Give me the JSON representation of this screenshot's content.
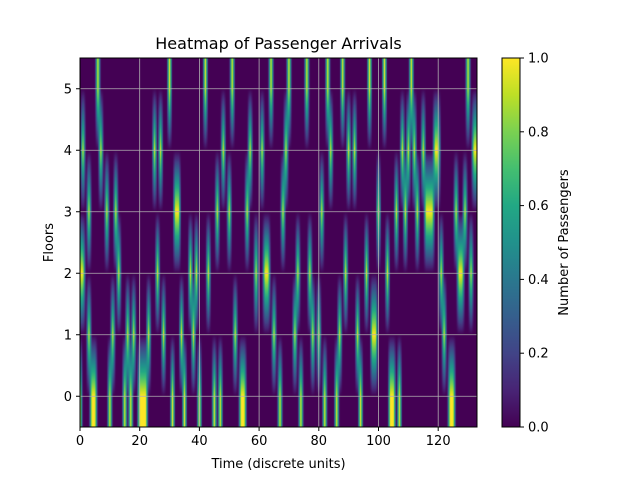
{
  "chart_data": {
    "type": "heatmap",
    "title": "Heatmap of Passenger Arrivals",
    "xlabel": "Time (discrete units)",
    "ylabel": "Floors",
    "colorbar_label": "Number of Passengers",
    "colormap": "viridis",
    "grid": true,
    "xlim": [
      0,
      133
    ],
    "ylim": [
      -0.5,
      5.5
    ],
    "value_range": [
      0,
      1
    ],
    "x_ticks": [
      0,
      20,
      40,
      60,
      80,
      100,
      120
    ],
    "y_ticks": [
      0,
      1,
      2,
      3,
      4,
      5
    ],
    "colorbar_ticks": [
      "0.0",
      "0.2",
      "0.4",
      "0.6",
      "0.8",
      "1.0"
    ],
    "time_steps": 133,
    "floors": [
      0,
      1,
      2,
      3,
      4,
      5
    ],
    "arrivals": [
      {
        "t": 0,
        "floor": 0
      },
      {
        "t": 0,
        "floor": 2
      },
      {
        "t": 1,
        "floor": 2
      },
      {
        "t": 1,
        "floor": 4
      },
      {
        "t": 3,
        "floor": 1
      },
      {
        "t": 3,
        "floor": 3
      },
      {
        "t": 4,
        "floor": 0
      },
      {
        "t": 5,
        "floor": 0
      },
      {
        "t": 6,
        "floor": 5
      },
      {
        "t": 7,
        "floor": 4
      },
      {
        "t": 9,
        "floor": 3
      },
      {
        "t": 10,
        "floor": 0
      },
      {
        "t": 11,
        "floor": 1
      },
      {
        "t": 12,
        "floor": 3
      },
      {
        "t": 13,
        "floor": 2
      },
      {
        "t": 15,
        "floor": 0
      },
      {
        "t": 16,
        "floor": 1
      },
      {
        "t": 17,
        "floor": 0
      },
      {
        "t": 18,
        "floor": 1
      },
      {
        "t": 20,
        "floor": 0
      },
      {
        "t": 21,
        "floor": 0
      },
      {
        "t": 22,
        "floor": 0
      },
      {
        "t": 23,
        "floor": 1
      },
      {
        "t": 25,
        "floor": 4
      },
      {
        "t": 26,
        "floor": 2
      },
      {
        "t": 27,
        "floor": 4
      },
      {
        "t": 28,
        "floor": 1
      },
      {
        "t": 30,
        "floor": 5
      },
      {
        "t": 31,
        "floor": 0
      },
      {
        "t": 32,
        "floor": 3
      },
      {
        "t": 33,
        "floor": 3
      },
      {
        "t": 34,
        "floor": 1
      },
      {
        "t": 35,
        "floor": 0
      },
      {
        "t": 37,
        "floor": 2
      },
      {
        "t": 38,
        "floor": 1
      },
      {
        "t": 39,
        "floor": 2
      },
      {
        "t": 40,
        "floor": 0
      },
      {
        "t": 42,
        "floor": 5
      },
      {
        "t": 43,
        "floor": 2
      },
      {
        "t": 45,
        "floor": 0
      },
      {
        "t": 46,
        "floor": 3
      },
      {
        "t": 47,
        "floor": 0
      },
      {
        "t": 48,
        "floor": 4
      },
      {
        "t": 50,
        "floor": 3
      },
      {
        "t": 51,
        "floor": 5
      },
      {
        "t": 52,
        "floor": 1
      },
      {
        "t": 54,
        "floor": 0
      },
      {
        "t": 55,
        "floor": 0
      },
      {
        "t": 56,
        "floor": 3
      },
      {
        "t": 57,
        "floor": 4
      },
      {
        "t": 59,
        "floor": 2
      },
      {
        "t": 61,
        "floor": 4
      },
      {
        "t": 62,
        "floor": 2
      },
      {
        "t": 63,
        "floor": 2
      },
      {
        "t": 64,
        "floor": 5
      },
      {
        "t": 65,
        "floor": 1
      },
      {
        "t": 67,
        "floor": 0
      },
      {
        "t": 68,
        "floor": 3
      },
      {
        "t": 69,
        "floor": 4
      },
      {
        "t": 70,
        "floor": 5
      },
      {
        "t": 72,
        "floor": 1
      },
      {
        "t": 73,
        "floor": 2
      },
      {
        "t": 74,
        "floor": 0
      },
      {
        "t": 76,
        "floor": 5
      },
      {
        "t": 77,
        "floor": 2
      },
      {
        "t": 78,
        "floor": 1
      },
      {
        "t": 80,
        "floor": 1
      },
      {
        "t": 81,
        "floor": 3
      },
      {
        "t": 82,
        "floor": 0
      },
      {
        "t": 83,
        "floor": 5
      },
      {
        "t": 84,
        "floor": 4
      },
      {
        "t": 86,
        "floor": 0
      },
      {
        "t": 87,
        "floor": 1
      },
      {
        "t": 88,
        "floor": 5
      },
      {
        "t": 89,
        "floor": 2
      },
      {
        "t": 90,
        "floor": 4
      },
      {
        "t": 92,
        "floor": 4
      },
      {
        "t": 93,
        "floor": 1
      },
      {
        "t": 94,
        "floor": 0
      },
      {
        "t": 96,
        "floor": 2
      },
      {
        "t": 97,
        "floor": 5
      },
      {
        "t": 98,
        "floor": 1
      },
      {
        "t": 99,
        "floor": 1
      },
      {
        "t": 100,
        "floor": 3
      },
      {
        "t": 102,
        "floor": 5
      },
      {
        "t": 103,
        "floor": 2
      },
      {
        "t": 104,
        "floor": 0
      },
      {
        "t": 105,
        "floor": 0
      },
      {
        "t": 106,
        "floor": 3
      },
      {
        "t": 107,
        "floor": 0
      },
      {
        "t": 108,
        "floor": 4
      },
      {
        "t": 109,
        "floor": 3
      },
      {
        "t": 110,
        "floor": 4
      },
      {
        "t": 111,
        "floor": 5
      },
      {
        "t": 112,
        "floor": 4
      },
      {
        "t": 113,
        "floor": 3
      },
      {
        "t": 115,
        "floor": 4
      },
      {
        "t": 116,
        "floor": 3
      },
      {
        "t": 117,
        "floor": 3
      },
      {
        "t": 118,
        "floor": 3
      },
      {
        "t": 119,
        "floor": 4
      },
      {
        "t": 120,
        "floor": 4
      },
      {
        "t": 121,
        "floor": 2
      },
      {
        "t": 122,
        "floor": 1
      },
      {
        "t": 124,
        "floor": 0
      },
      {
        "t": 125,
        "floor": 0
      },
      {
        "t": 126,
        "floor": 3
      },
      {
        "t": 127,
        "floor": 2
      },
      {
        "t": 128,
        "floor": 2
      },
      {
        "t": 129,
        "floor": 3
      },
      {
        "t": 130,
        "floor": 5
      },
      {
        "t": 131,
        "floor": 2
      },
      {
        "t": 132,
        "floor": 4
      }
    ]
  }
}
